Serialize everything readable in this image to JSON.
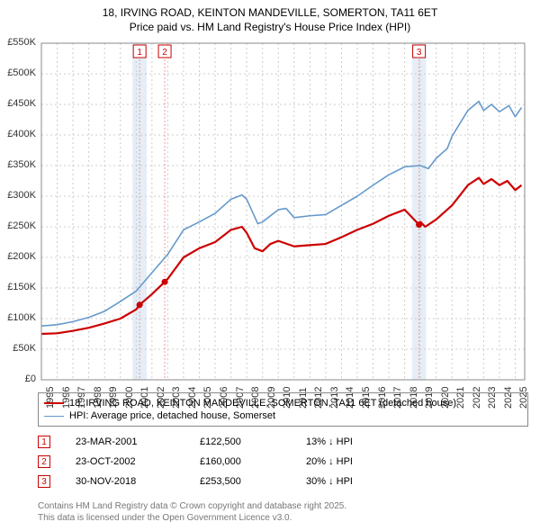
{
  "title_line1": "18, IRVING ROAD, KEINTON MANDEVILLE, SOMERTON, TA11 6ET",
  "title_line2": "Price paid vs. HM Land Registry's House Price Index (HPI)",
  "chart": {
    "type": "line",
    "background_color": "#ffffff",
    "plot_border_color": "#888888",
    "grid_color": "#cccccc",
    "grid_dash": "2,3",
    "title_fontsize": 12,
    "axis_label_fontsize": 11,
    "ylim": [
      0,
      550000
    ],
    "ytick_step": 50000,
    "yticks": [
      "£0",
      "£50K",
      "£100K",
      "£150K",
      "£200K",
      "£250K",
      "£300K",
      "£350K",
      "£400K",
      "£450K",
      "£500K",
      "£550K"
    ],
    "xlim": [
      1995,
      2025.6
    ],
    "xticks": [
      1995,
      1996,
      1997,
      1998,
      1999,
      2000,
      2001,
      2002,
      2003,
      2004,
      2005,
      2006,
      2007,
      2008,
      2009,
      2010,
      2011,
      2012,
      2013,
      2014,
      2015,
      2016,
      2017,
      2018,
      2019,
      2020,
      2021,
      2022,
      2023,
      2024,
      2025
    ],
    "tick_color": "#333333",
    "series": [
      {
        "name": "price_paid",
        "color": "#cc0000",
        "line_width": 2.2,
        "data": [
          [
            1995,
            75000
          ],
          [
            1996,
            76000
          ],
          [
            1997,
            80000
          ],
          [
            1998,
            85000
          ],
          [
            1999,
            92000
          ],
          [
            2000,
            100000
          ],
          [
            2001,
            115000
          ],
          [
            2001.22,
            122500
          ],
          [
            2002,
            140000
          ],
          [
            2002.81,
            160000
          ],
          [
            2003,
            165000
          ],
          [
            2004,
            200000
          ],
          [
            2005,
            215000
          ],
          [
            2006,
            225000
          ],
          [
            2007,
            245000
          ],
          [
            2007.7,
            250000
          ],
          [
            2008,
            240000
          ],
          [
            2008.5,
            215000
          ],
          [
            2009,
            210000
          ],
          [
            2009.5,
            222000
          ],
          [
            2010,
            227000
          ],
          [
            2011,
            218000
          ],
          [
            2012,
            220000
          ],
          [
            2013,
            222000
          ],
          [
            2014,
            233000
          ],
          [
            2015,
            245000
          ],
          [
            2016,
            255000
          ],
          [
            2017,
            268000
          ],
          [
            2018,
            278000
          ],
          [
            2018.91,
            253500
          ],
          [
            2019,
            258000
          ],
          [
            2019.3,
            250000
          ],
          [
            2020,
            262000
          ],
          [
            2021,
            285000
          ],
          [
            2022,
            318000
          ],
          [
            2022.7,
            330000
          ],
          [
            2023,
            320000
          ],
          [
            2023.5,
            328000
          ],
          [
            2024,
            318000
          ],
          [
            2024.5,
            325000
          ],
          [
            2025,
            310000
          ],
          [
            2025.4,
            318000
          ]
        ]
      },
      {
        "name": "hpi",
        "color": "#6699cc",
        "line_width": 1.6,
        "data": [
          [
            1995,
            88000
          ],
          [
            1996,
            90000
          ],
          [
            1997,
            95000
          ],
          [
            1998,
            102000
          ],
          [
            1999,
            112000
          ],
          [
            2000,
            128000
          ],
          [
            2001,
            145000
          ],
          [
            2002,
            175000
          ],
          [
            2003,
            205000
          ],
          [
            2004,
            245000
          ],
          [
            2005,
            258000
          ],
          [
            2006,
            272000
          ],
          [
            2007,
            295000
          ],
          [
            2007.7,
            302000
          ],
          [
            2008,
            295000
          ],
          [
            2008.7,
            255000
          ],
          [
            2009,
            258000
          ],
          [
            2010,
            278000
          ],
          [
            2010.5,
            280000
          ],
          [
            2011,
            265000
          ],
          [
            2012,
            268000
          ],
          [
            2013,
            270000
          ],
          [
            2014,
            285000
          ],
          [
            2015,
            300000
          ],
          [
            2016,
            318000
          ],
          [
            2017,
            335000
          ],
          [
            2018,
            348000
          ],
          [
            2019,
            350000
          ],
          [
            2019.5,
            345000
          ],
          [
            2020,
            362000
          ],
          [
            2020.7,
            378000
          ],
          [
            2021,
            398000
          ],
          [
            2022,
            440000
          ],
          [
            2022.7,
            455000
          ],
          [
            2023,
            440000
          ],
          [
            2023.5,
            450000
          ],
          [
            2024,
            438000
          ],
          [
            2024.6,
            448000
          ],
          [
            2025,
            430000
          ],
          [
            2025.4,
            445000
          ]
        ]
      }
    ],
    "sale_markers": [
      {
        "num": "1",
        "year": 2001.22,
        "price": 122500,
        "band_color": "#d0e0f0"
      },
      {
        "num": "2",
        "year": 2002.81,
        "price": 160000,
        "band_color": null
      },
      {
        "num": "3",
        "year": 2018.91,
        "price": 253500,
        "band_color": "#d0e0f0"
      }
    ],
    "marker_line_color": "#ee9999",
    "marker_line_dash": "2,2",
    "marker_box_border": "#cc0000",
    "marker_box_text": "#cc0000",
    "marker_box_bg": "#ffffff",
    "marker_dot_color": "#cc0000",
    "marker_dot_radius": 3.5
  },
  "legend": {
    "items": [
      {
        "color": "#cc0000",
        "width": 2.5,
        "label": "18, IRVING ROAD, KEINTON MANDEVILLE, SOMERTON, TA11 6ET (detached house)"
      },
      {
        "color": "#6699cc",
        "width": 1.8,
        "label": "HPI: Average price, detached house, Somerset"
      }
    ]
  },
  "sales_table": [
    {
      "num": "1",
      "date": "23-MAR-2001",
      "price": "£122,500",
      "hpi": "13% ↓ HPI"
    },
    {
      "num": "2",
      "date": "23-OCT-2002",
      "price": "£160,000",
      "hpi": "20% ↓ HPI"
    },
    {
      "num": "3",
      "date": "30-NOV-2018",
      "price": "£253,500",
      "hpi": "30% ↓ HPI"
    }
  ],
  "footer_line1": "Contains HM Land Registry data © Crown copyright and database right 2025.",
  "footer_line2": "This data is licensed under the Open Government Licence v3.0."
}
